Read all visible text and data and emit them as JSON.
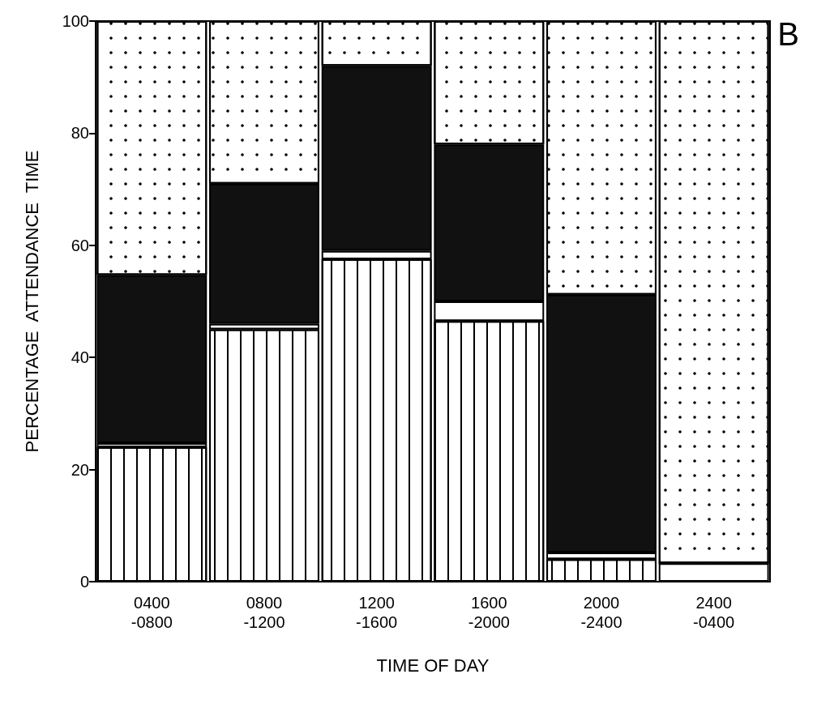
{
  "chart_data": {
    "type": "bar",
    "stacked": true,
    "xlabel": "TIME OF DAY",
    "ylabel": "PERCENTAGE  ATTENDANCE  TIME",
    "categories": [
      "0400\n-0800",
      "0800\n-1200",
      "1200\n-1600",
      "1600\n-2000",
      "2000\n-2400",
      "2400\n-0400"
    ],
    "series": [
      {
        "color": "#ffffff",
        "values": [
          24,
          45,
          57.5,
          46.5,
          4,
          0
        ]
      },
      {
        "color": "#ffffff",
        "values": [
          0.7,
          1,
          1.5,
          3.5,
          1.2,
          3.3
        ]
      },
      {
        "color": "#111111",
        "values": [
          30,
          25,
          33,
          28,
          46,
          0
        ]
      },
      {
        "color": "#ffffff",
        "values": [
          45.3,
          29,
          8,
          22,
          48.8,
          96.7
        ]
      }
    ],
    "ylim": [
      0,
      100
    ],
    "yticks": [
      0,
      20,
      40,
      60,
      80,
      100
    ],
    "grid": false,
    "annotations": [
      "B"
    ]
  }
}
